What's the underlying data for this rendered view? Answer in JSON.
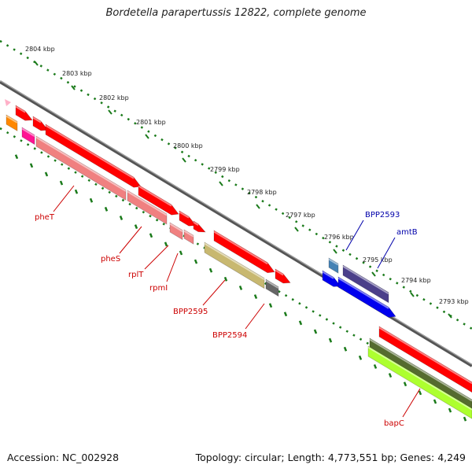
{
  "title": "Bordetella parapertussis 12822, complete genome",
  "footer": {
    "accession": "Accession: NC_002928",
    "stats": "Topology: circular; Length: 4,773,551 bp; Genes: 4,249"
  },
  "ruler": [
    "2804 kbp",
    "2803 kbp",
    "2802 kbp",
    "2801 kbp",
    "2800 kbp",
    "2799 kbp",
    "2798 kbp",
    "2797 kbp",
    "2796 kbp",
    "2795 kbp",
    "2794 kbp",
    "2793 kbp"
  ],
  "gene_labels": [
    {
      "name": "pheT",
      "color": "#cc0000"
    },
    {
      "name": "pheS",
      "color": "#cc0000"
    },
    {
      "name": "rplT",
      "color": "#cc0000"
    },
    {
      "name": "rpmI",
      "color": "#cc0000"
    },
    {
      "name": "BPP2595",
      "color": "#cc0000"
    },
    {
      "name": "BPP2594",
      "color": "#cc0000"
    },
    {
      "name": "BPP2593",
      "color": "#0000aa"
    },
    {
      "name": "amtB",
      "color": "#0000aa"
    },
    {
      "name": "bapC",
      "color": "#cc0000"
    }
  ],
  "colors": {
    "red": "#ff0000",
    "salmon": "#f08080",
    "blue": "#0000ee",
    "navy": "#4b3f8a",
    "steel": "#4682b4",
    "olive": "#c8b870",
    "gray": "#666666",
    "orange": "#ff8800",
    "magenta": "#ff1493",
    "pink": "#ffb0c8",
    "darkolive": "#556b2f",
    "lime": "#adff2f",
    "tick": "#1a7a1a"
  }
}
